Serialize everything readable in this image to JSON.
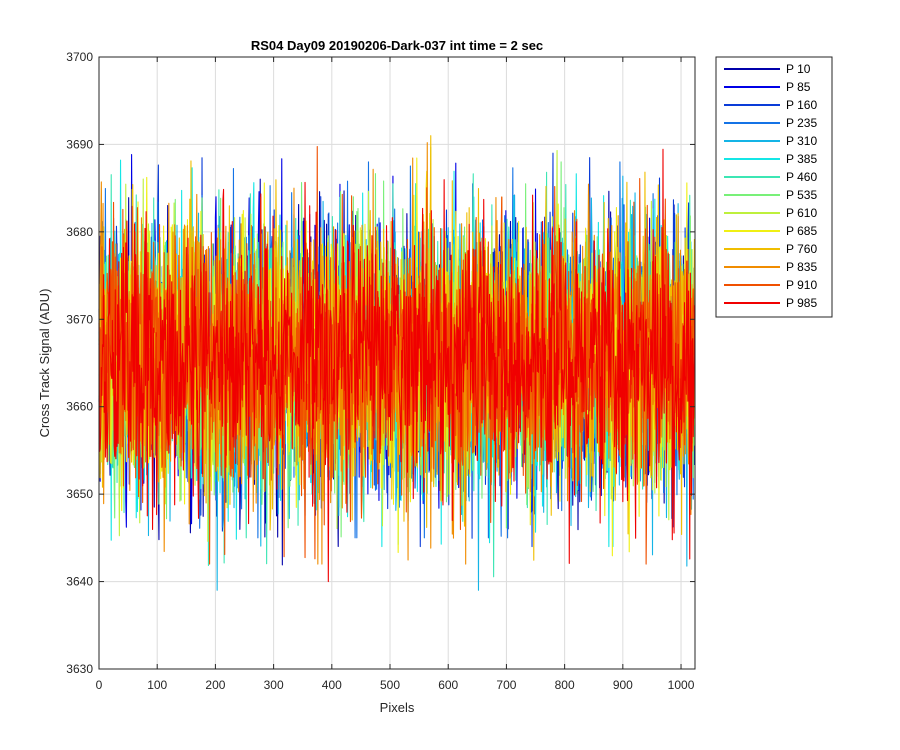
{
  "chart_data": {
    "type": "line",
    "title": "RS04 Day09 20190206-Dark-037 int time = 2 sec",
    "xlabel": "Pixels",
    "ylabel": "Cross Track Signal (ADU)",
    "xlim": [
      0,
      1024
    ],
    "ylim": [
      3630,
      3700
    ],
    "xticks": [
      0,
      100,
      200,
      300,
      400,
      500,
      600,
      700,
      800,
      900,
      1000
    ],
    "yticks": [
      3630,
      3640,
      3650,
      3660,
      3670,
      3680,
      3690,
      3700
    ],
    "grid": true,
    "legend_position": "outside-top-right",
    "x_count": 1024,
    "series": [
      {
        "name": "P 10",
        "color": "#0000aa",
        "mean": 3665.5,
        "min": 3639,
        "max": 3690
      },
      {
        "name": "P 85",
        "color": "#0000e6",
        "mean": 3665.5,
        "min": 3643,
        "max": 3690
      },
      {
        "name": "P 160",
        "color": "#0a3cd8",
        "mean": 3665.5,
        "min": 3644,
        "max": 3689
      },
      {
        "name": "P 235",
        "color": "#1473e6",
        "mean": 3665.5,
        "min": 3645,
        "max": 3688
      },
      {
        "name": "P 310",
        "color": "#14b4e6",
        "mean": 3665.5,
        "min": 3639,
        "max": 3697
      },
      {
        "name": "P 385",
        "color": "#14e6e6",
        "mean": 3665.5,
        "min": 3644,
        "max": 3689
      },
      {
        "name": "P 460",
        "color": "#3ce6b4",
        "mean": 3665.5,
        "min": 3638,
        "max": 3688
      },
      {
        "name": "P 535",
        "color": "#78f078",
        "mean": 3665.5,
        "min": 3643,
        "max": 3688
      },
      {
        "name": "P 610",
        "color": "#bef03c",
        "mean": 3665.5,
        "min": 3641,
        "max": 3692
      },
      {
        "name": "P 685",
        "color": "#f0f014",
        "mean": 3665.5,
        "min": 3640,
        "max": 3690
      },
      {
        "name": "P 760",
        "color": "#f0be00",
        "mean": 3665.5,
        "min": 3639,
        "max": 3691
      },
      {
        "name": "P 835",
        "color": "#f08c00",
        "mean": 3665.5,
        "min": 3642,
        "max": 3691
      },
      {
        "name": "P 910",
        "color": "#f05000",
        "mean": 3665.5,
        "min": 3642,
        "max": 3690
      },
      {
        "name": "P 985",
        "color": "#f00000",
        "mean": 3665.5,
        "min": 3640,
        "max": 3691
      }
    ]
  }
}
